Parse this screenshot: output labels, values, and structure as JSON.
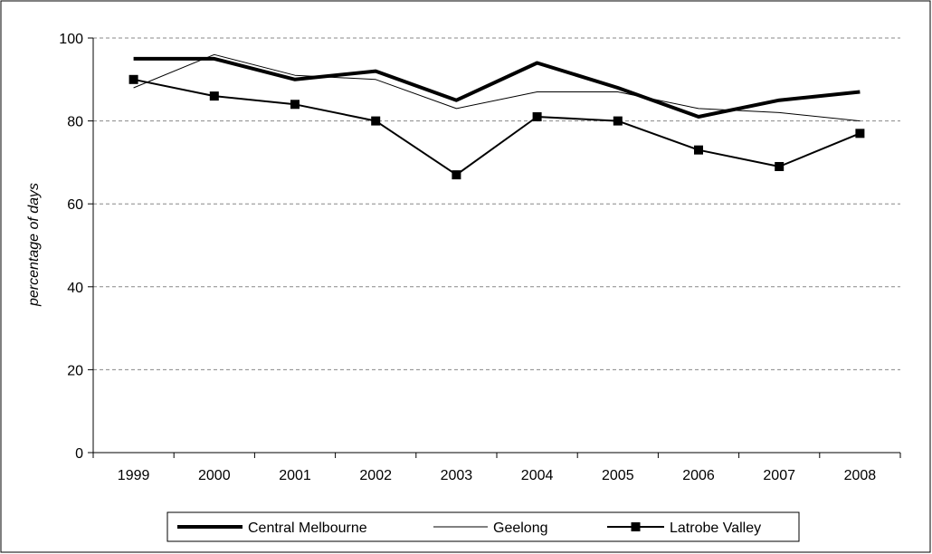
{
  "chart_data": {
    "type": "line",
    "title": "",
    "xlabel": "",
    "ylabel": "percentage of days",
    "ylim": [
      0,
      100
    ],
    "yticks": [
      0,
      20,
      40,
      60,
      80,
      100
    ],
    "grid": "horizontal-dashed",
    "legend_position": "bottom",
    "categories": [
      "1999",
      "2000",
      "2001",
      "2002",
      "2003",
      "2004",
      "2005",
      "2006",
      "2007",
      "2008"
    ],
    "series": [
      {
        "name": "Central Melbourne",
        "values": [
          95,
          95,
          90,
          92,
          85,
          94,
          88,
          81,
          85,
          87
        ],
        "color": "#000000",
        "style": "thick-line"
      },
      {
        "name": "Geelong",
        "values": [
          88,
          96,
          91,
          90,
          83,
          87,
          87,
          83,
          82,
          80
        ],
        "color": "#000000",
        "style": "thin-line"
      },
      {
        "name": "Latrobe Valley",
        "values": [
          90,
          86,
          84,
          80,
          67,
          81,
          80,
          73,
          69,
          77
        ],
        "color": "#000000",
        "style": "line-square-markers"
      }
    ]
  }
}
